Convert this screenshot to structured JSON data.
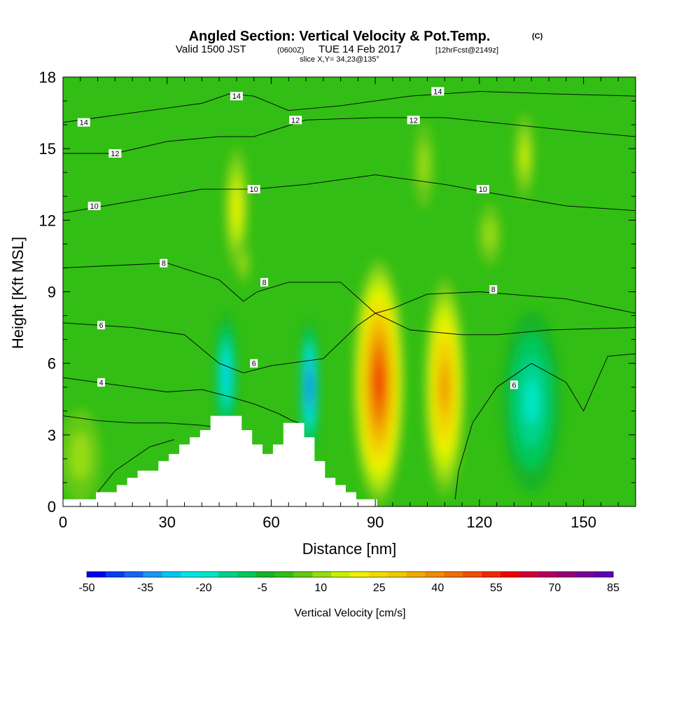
{
  "header": {
    "title": "Angled Section: Vertical Velocity & Pot.Temp.",
    "title_mark": "(C)",
    "subtitle_valid": "Valid 1500 JST",
    "subtitle_zulu": "(0600Z)",
    "subtitle_date": "TUE 14 Feb 2017",
    "subtitle_fcst": "[12hrFcst@2149z]",
    "slice": "slice X,Y= 34,23@135°"
  },
  "chart_data": {
    "type": "heatmap",
    "xlabel": "Distance [nm]",
    "ylabel": "Height [Kft MSL]",
    "xlim": [
      0,
      165
    ],
    "ylim": [
      0,
      18
    ],
    "x_ticks": [
      0,
      30,
      60,
      90,
      120,
      150
    ],
    "y_ticks": [
      0,
      3,
      6,
      9,
      12,
      15,
      18
    ],
    "colorbar": {
      "title": "Vertical Velocity [cm/s]",
      "levels": [
        -50,
        -45,
        -40,
        -35,
        -30,
        -25,
        -20,
        -15,
        -10,
        -5,
        0,
        5,
        10,
        15,
        20,
        25,
        30,
        35,
        40,
        45,
        50,
        55,
        60,
        65,
        70,
        75,
        80,
        85
      ],
      "tick_labels": [
        "-50",
        "-35",
        "-20",
        "-5",
        "10",
        "25",
        "40",
        "55",
        "70",
        "85"
      ],
      "colors": [
        "#0000f0",
        "#0a3cf0",
        "#1466f0",
        "#1e96f0",
        "#00c8f0",
        "#00e6e6",
        "#00e6c8",
        "#00d28c",
        "#00c85a",
        "#14b428",
        "#32be14",
        "#64c814",
        "#96dc14",
        "#c8f000",
        "#f0f000",
        "#f0dc00",
        "#f0c800",
        "#f0aa00",
        "#f08c00",
        "#f06e00",
        "#f05000",
        "#f02800",
        "#f00000",
        "#d20032",
        "#b4005a",
        "#96007d",
        "#78009b",
        "#5a00b4"
      ]
    },
    "velocity_features": [
      {
        "x": 50,
        "y": 12.5,
        "value": 20
      },
      {
        "x": 52,
        "y": 10.2,
        "value": 10
      },
      {
        "x": 47,
        "y": 5.5,
        "value": -30
      },
      {
        "x": 71,
        "y": 5.0,
        "value": -45
      },
      {
        "x": 91,
        "y": 5.2,
        "value": 55
      },
      {
        "x": 110,
        "y": 5.0,
        "value": 40
      },
      {
        "x": 135,
        "y": 4.4,
        "value": -20
      },
      {
        "x": 5,
        "y": 2.1,
        "value": 10
      },
      {
        "x": 104,
        "y": 14.3,
        "value": 10
      },
      {
        "x": 133,
        "y": 14.7,
        "value": 15
      },
      {
        "x": 123,
        "y": 11.4,
        "value": 10
      }
    ],
    "terrain": [
      {
        "x": 0,
        "y": 0.3
      },
      {
        "x": 9.5,
        "y": 0.3
      },
      {
        "x": 9.5,
        "y": 0.6
      },
      {
        "x": 15.5,
        "y": 0.6
      },
      {
        "x": 15.5,
        "y": 0.9
      },
      {
        "x": 18.5,
        "y": 0.9
      },
      {
        "x": 18.5,
        "y": 1.2
      },
      {
        "x": 21.5,
        "y": 1.2
      },
      {
        "x": 21.5,
        "y": 1.5
      },
      {
        "x": 27.5,
        "y": 1.5
      },
      {
        "x": 27.5,
        "y": 1.9
      },
      {
        "x": 30.5,
        "y": 1.9
      },
      {
        "x": 30.5,
        "y": 2.2
      },
      {
        "x": 33.5,
        "y": 2.2
      },
      {
        "x": 33.5,
        "y": 2.6
      },
      {
        "x": 36.5,
        "y": 2.6
      },
      {
        "x": 36.5,
        "y": 2.9
      },
      {
        "x": 39.5,
        "y": 2.9
      },
      {
        "x": 39.5,
        "y": 3.2
      },
      {
        "x": 42.5,
        "y": 3.2
      },
      {
        "x": 42.5,
        "y": 3.8
      },
      {
        "x": 51.5,
        "y": 3.8
      },
      {
        "x": 51.5,
        "y": 3.2
      },
      {
        "x": 54.5,
        "y": 3.2
      },
      {
        "x": 54.5,
        "y": 2.6
      },
      {
        "x": 57.5,
        "y": 2.6
      },
      {
        "x": 57.5,
        "y": 2.2
      },
      {
        "x": 60.5,
        "y": 2.2
      },
      {
        "x": 60.5,
        "y": 2.6
      },
      {
        "x": 63.5,
        "y": 2.6
      },
      {
        "x": 63.5,
        "y": 3.5
      },
      {
        "x": 69.5,
        "y": 3.5
      },
      {
        "x": 69.5,
        "y": 2.9
      },
      {
        "x": 72.5,
        "y": 2.9
      },
      {
        "x": 72.5,
        "y": 1.9
      },
      {
        "x": 75.5,
        "y": 1.9
      },
      {
        "x": 75.5,
        "y": 1.2
      },
      {
        "x": 78.5,
        "y": 1.2
      },
      {
        "x": 78.5,
        "y": 0.9
      },
      {
        "x": 81.5,
        "y": 0.9
      },
      {
        "x": 81.5,
        "y": 0.6
      },
      {
        "x": 84.5,
        "y": 0.6
      },
      {
        "x": 84.5,
        "y": 0.3
      },
      {
        "x": 90.5,
        "y": 0.3
      },
      {
        "x": 90.5,
        "y": 0
      },
      {
        "x": 0,
        "y": 0
      }
    ],
    "theta_contours": [
      {
        "name": "14",
        "x": [
          0,
          20,
          40,
          48,
          55,
          65,
          80,
          100,
          120,
          140,
          165
        ],
        "y": [
          16.1,
          16.5,
          16.9,
          17.3,
          17.2,
          16.6,
          16.8,
          17.2,
          17.4,
          17.3,
          17.2
        ]
      },
      {
        "name": "12",
        "x": [
          0,
          15,
          30,
          45,
          55,
          70,
          90,
          110,
          130,
          150,
          165
        ],
        "y": [
          14.8,
          14.8,
          15.3,
          15.5,
          15.5,
          16.2,
          16.3,
          16.3,
          16.0,
          15.7,
          15.5
        ]
      },
      {
        "name": "10",
        "x": [
          0,
          20,
          40,
          55,
          70,
          90,
          110,
          125,
          145,
          165
        ],
        "y": [
          12.3,
          12.8,
          13.3,
          13.3,
          13.5,
          13.9,
          13.5,
          13.1,
          12.6,
          12.4
        ]
      },
      {
        "name": "8",
        "x": [
          0,
          15,
          30,
          45,
          52,
          56,
          65,
          80,
          90,
          95,
          105,
          120,
          145,
          165
        ],
        "y": [
          10.0,
          10.1,
          10.2,
          9.5,
          8.6,
          9.0,
          9.4,
          9.4,
          8.1,
          8.3,
          8.9,
          9.0,
          8.7,
          8.1
        ]
      },
      {
        "name": "6",
        "x": [
          0,
          20,
          35,
          45,
          52,
          60,
          65,
          75,
          85,
          90,
          100,
          115,
          125,
          140,
          165
        ],
        "y": [
          7.7,
          7.5,
          7.2,
          6.0,
          5.6,
          5.9,
          6.0,
          6.2,
          7.6,
          8.1,
          7.4,
          7.2,
          7.2,
          7.4,
          7.5
        ]
      },
      {
        "name": "4",
        "x": [
          0,
          20,
          30,
          40,
          48,
          55,
          62,
          66,
          68
        ],
        "y": [
          5.4,
          5.0,
          4.8,
          4.9,
          4.6,
          4.3,
          3.9,
          3.6,
          3.5
        ]
      },
      {
        "name": "2",
        "x": [
          0,
          10,
          20,
          30,
          40,
          45
        ],
        "y": [
          3.8,
          3.6,
          3.5,
          3.5,
          3.4,
          3.3
        ]
      },
      {
        "name": "0",
        "x": [
          10,
          15,
          25,
          32
        ],
        "y": [
          0.6,
          1.5,
          2.5,
          2.8
        ]
      },
      {
        "name": "bowl",
        "x": [
          113,
          114,
          118,
          125,
          135,
          145,
          150,
          157,
          165
        ],
        "y": [
          0.3,
          1.5,
          3.5,
          5.0,
          6.0,
          5.2,
          4.0,
          6.3,
          6.4
        ]
      }
    ],
    "contour_labels": [
      {
        "text": "14",
        "x": 6,
        "y": 16.1
      },
      {
        "text": "14",
        "x": 50,
        "y": 17.2
      },
      {
        "text": "14",
        "x": 108,
        "y": 17.4
      },
      {
        "text": "12",
        "x": 15,
        "y": 14.8
      },
      {
        "text": "12",
        "x": 67,
        "y": 16.2
      },
      {
        "text": "12",
        "x": 101,
        "y": 16.2
      },
      {
        "text": "10",
        "x": 9,
        "y": 12.6
      },
      {
        "text": "10",
        "x": 55,
        "y": 13.3
      },
      {
        "text": "10",
        "x": 121,
        "y": 13.3
      },
      {
        "text": "8",
        "x": 29,
        "y": 10.2
      },
      {
        "text": "8",
        "x": 58,
        "y": 9.4
      },
      {
        "text": "8",
        "x": 124,
        "y": 9.1
      },
      {
        "text": "6",
        "x": 11,
        "y": 7.6
      },
      {
        "text": "6",
        "x": 55,
        "y": 6.0
      },
      {
        "text": "6",
        "x": 130,
        "y": 5.1
      },
      {
        "text": "4",
        "x": 11,
        "y": 5.2
      }
    ]
  }
}
